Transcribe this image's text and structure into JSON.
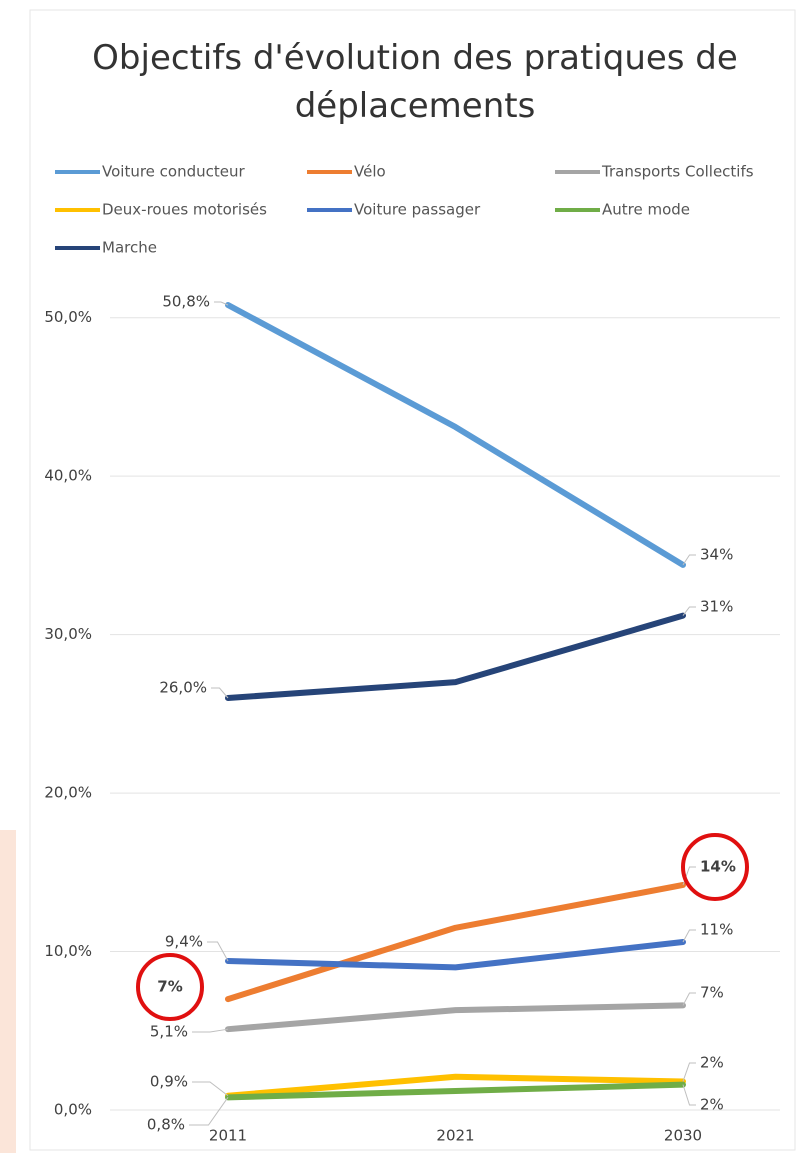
{
  "chart_data": {
    "type": "line",
    "title": "Objectifs d'évolution des pratiques de déplacements",
    "categories": [
      "2011",
      "2021",
      "2030"
    ],
    "ylim": [
      0,
      52
    ],
    "yticks": [
      {
        "value": 0,
        "label": "0,0%"
      },
      {
        "value": 10,
        "label": "10,0%"
      },
      {
        "value": 20,
        "label": "20,0%"
      },
      {
        "value": 30,
        "label": "30,0%"
      },
      {
        "value": 40,
        "label": "40,0%"
      },
      {
        "value": 50,
        "label": "50,0%"
      }
    ],
    "grid": true,
    "legend": "top",
    "series": [
      {
        "name": "Voiture conducteur",
        "color": "#5b9bd5",
        "values": [
          50.8,
          43.1,
          34.4
        ],
        "value_labels": [
          "50,8%",
          null,
          "34%"
        ]
      },
      {
        "name": "Vélo",
        "color": "#ed7d31",
        "values": [
          7,
          11.5,
          14.2
        ],
        "value_labels": [
          "7%",
          null,
          "14%"
        ]
      },
      {
        "name": "Transports Collectifs",
        "color": "#a5a5a5",
        "values": [
          5.1,
          6.3,
          6.6
        ],
        "value_labels": [
          "5,1%",
          null,
          "7%"
        ]
      },
      {
        "name": "Deux-roues motorisés",
        "color": "#ffc000",
        "values": [
          0.9,
          2.1,
          1.8
        ],
        "value_labels": [
          "0,9%",
          null,
          "2%"
        ]
      },
      {
        "name": "Voiture passager",
        "color": "#4472c4",
        "values": [
          9.4,
          9.0,
          10.6
        ],
        "value_labels": [
          "9,4%",
          null,
          "11%"
        ]
      },
      {
        "name": "Autre mode",
        "color": "#70ad47",
        "values": [
          0.8,
          1.2,
          1.6
        ],
        "value_labels": [
          "0,8%",
          null,
          "2%"
        ]
      },
      {
        "name": "Marche",
        "color": "#264478",
        "values": [
          26.0,
          27.0,
          31.2
        ],
        "value_labels": [
          "26,0%",
          null,
          "31%"
        ]
      }
    ]
  }
}
